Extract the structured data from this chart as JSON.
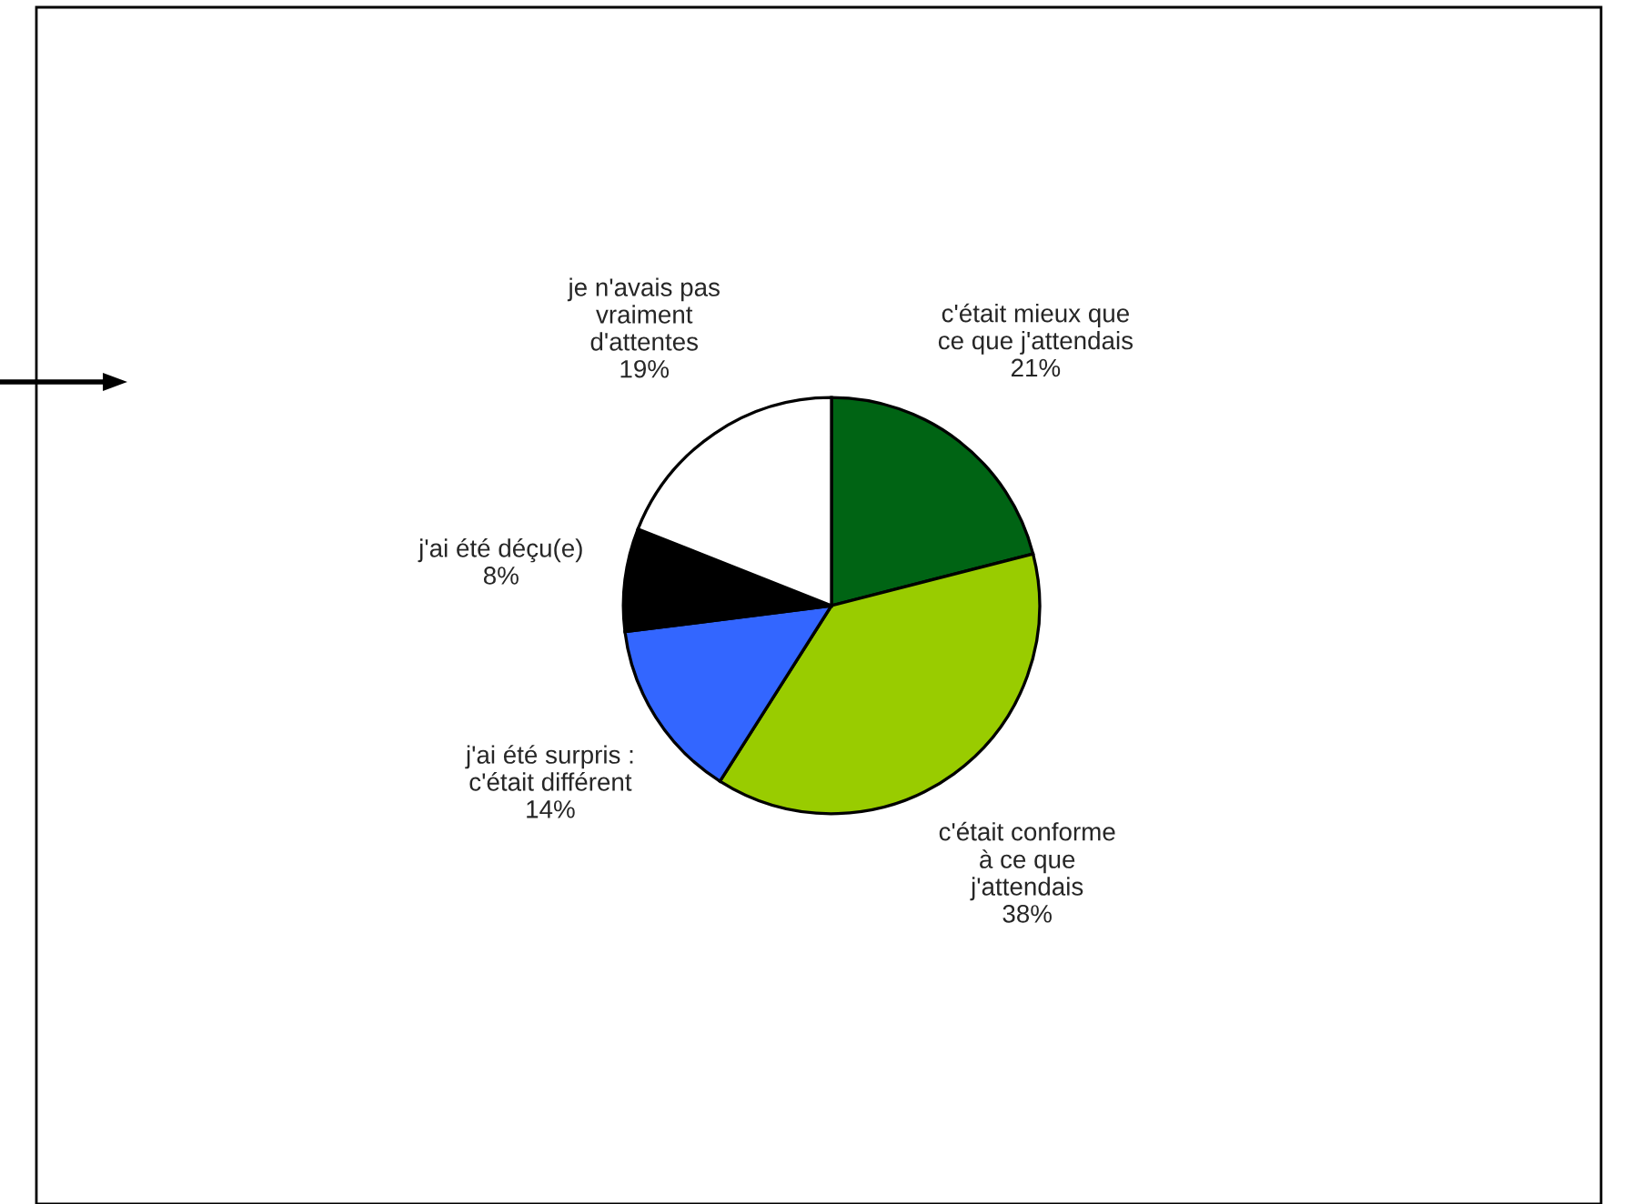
{
  "chart_data": {
    "type": "pie",
    "categories": [
      "c'était mieux que\nce que j'attendais",
      "c'était conforme\nà ce que\nj'attendais",
      "j'ai été surpris :\nc'était différent",
      "j'ai été déçu(e)",
      "je n'avais pas\nvraiment\nd'attentes"
    ],
    "values": [
      21,
      38,
      14,
      8,
      19
    ],
    "value_labels": [
      "21%",
      "38%",
      "14%",
      "8%",
      "19%"
    ],
    "colors": [
      "#006414",
      "#99cc00",
      "#3366ff",
      "#000000",
      "#ffffff"
    ],
    "legend": false
  }
}
